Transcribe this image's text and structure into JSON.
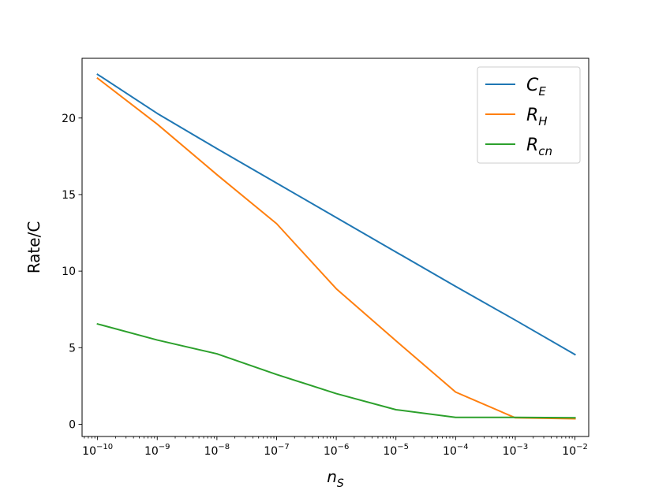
{
  "chart_data": {
    "type": "line",
    "x_scale": "log",
    "x": [
      1e-10,
      1e-09,
      1e-08,
      1e-07,
      1e-06,
      1e-05,
      0.0001,
      0.001,
      0.01
    ],
    "xlim": [
      5.5e-11,
      0.017
    ],
    "ylim": [
      -0.8,
      23.9
    ],
    "xlabel": "n_S",
    "ylabel": "Rate/C",
    "x_ticks": [
      {
        "base": "10",
        "exp": "−10"
      },
      {
        "base": "10",
        "exp": "−9"
      },
      {
        "base": "10",
        "exp": "−8"
      },
      {
        "base": "10",
        "exp": "−7"
      },
      {
        "base": "10",
        "exp": "−6"
      },
      {
        "base": "10",
        "exp": "−5"
      },
      {
        "base": "10",
        "exp": "−4"
      },
      {
        "base": "10",
        "exp": "−3"
      },
      {
        "base": "10",
        "exp": "−2"
      }
    ],
    "y_ticks": [
      0,
      5,
      10,
      15,
      20
    ],
    "y_tick_labels": [
      "0",
      "5",
      "10",
      "15",
      "20"
    ],
    "legend_position": "top-right",
    "grid": false,
    "series": [
      {
        "name": "C_E",
        "label_main": "C",
        "label_sub": "E",
        "color": "#1f77b4",
        "values": [
          22.85,
          20.3,
          18.0,
          15.75,
          13.5,
          11.25,
          9.0,
          6.8,
          4.55
        ]
      },
      {
        "name": "R_H",
        "label_main": "R",
        "label_sub": "H",
        "color": "#ff7f0e",
        "values": [
          22.6,
          19.6,
          16.3,
          13.1,
          8.85,
          5.45,
          2.1,
          0.42,
          0.36
        ]
      },
      {
        "name": "R_cn",
        "label_main": "R",
        "label_sub": "cn",
        "color": "#2ca02c",
        "values": [
          6.55,
          5.5,
          4.6,
          3.25,
          2.0,
          0.95,
          0.45,
          0.45,
          0.42
        ]
      }
    ]
  }
}
